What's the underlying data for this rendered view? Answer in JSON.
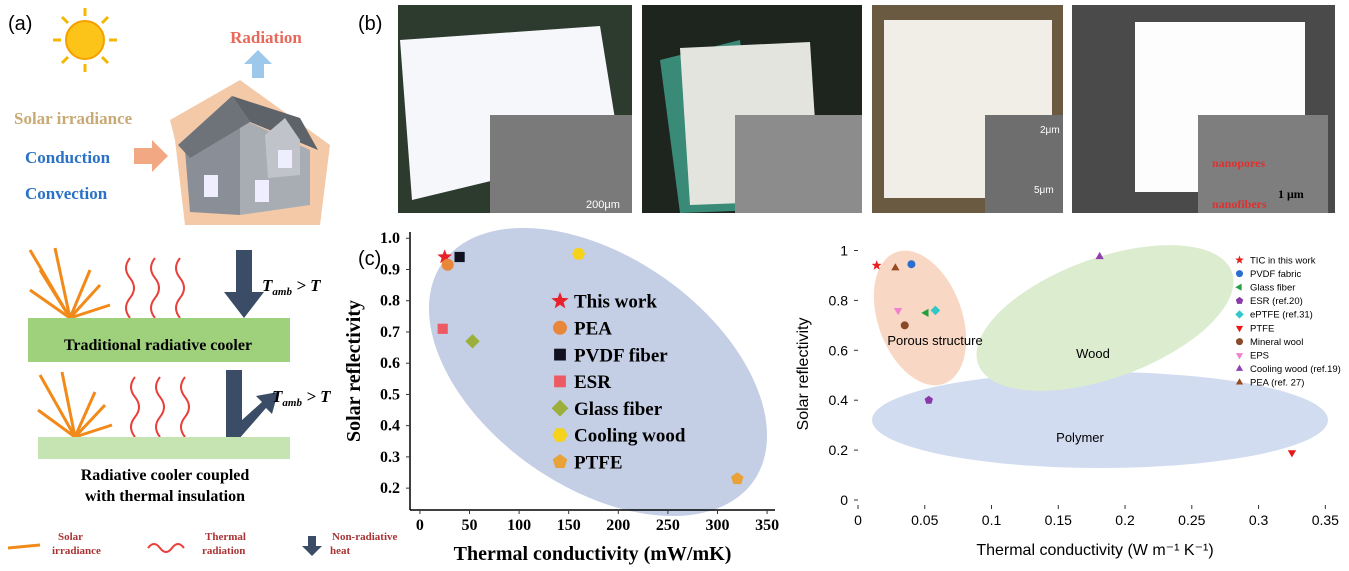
{
  "panel_a": {
    "label": "(a)",
    "radiation": "Radiation",
    "solar_irradiance": "Solar irradiance",
    "conduction": "Conduction",
    "convection": "Convection",
    "condition": [
      "T",
      "amb",
      " > T"
    ],
    "traditional": "Traditional radiative cooler",
    "coupled": [
      "Radiative cooler coupled",
      "with thermal insulation"
    ],
    "legend": [
      [
        "Solar",
        "irradiance"
      ],
      [
        "Thermal",
        "radiation"
      ],
      [
        "Non-radiative",
        "heat"
      ]
    ]
  },
  "panel_b": {
    "label": "(b)",
    "scale_1": "200μm",
    "scale_3a": "2μm",
    "scale_3b": "5μm",
    "pores": "nanopores",
    "fibers": "nanofibers",
    "scale_4": "1 μm"
  },
  "panel_c": {
    "label": "(c)"
  },
  "chart_data": [
    {
      "type": "scatter",
      "xlabel": "Thermal conductivity (mW/mK)",
      "ylabel": "Solar reflectivity",
      "xlim": [
        -10,
        358
      ],
      "ylim": [
        0.13,
        1.02
      ],
      "xticks": [
        0,
        50,
        100,
        150,
        200,
        250,
        300,
        350
      ],
      "yticks": [
        0.2,
        0.3,
        0.4,
        0.5,
        0.6,
        0.7,
        0.8,
        0.9,
        {
          "value": 1,
          "label": "1.0"
        }
      ],
      "series": [
        {
          "name": "This work",
          "color": "#e8202a",
          "marker": "star",
          "x": [
            25
          ],
          "values": [
            0.94
          ]
        },
        {
          "name": "PEA",
          "color": "#e8863a",
          "marker": "circle",
          "x": [
            28
          ],
          "values": [
            0.915
          ]
        },
        {
          "name": "PVDF fiber",
          "color": "#111122",
          "marker": "square",
          "x": [
            40
          ],
          "values": [
            0.94
          ]
        },
        {
          "name": "ESR",
          "color": "#ee5a64",
          "marker": "square",
          "x": [
            23
          ],
          "values": [
            0.71
          ]
        },
        {
          "name": "Glass fiber",
          "color": "#9ab03a",
          "marker": "diamond",
          "x": [
            53
          ],
          "values": [
            0.67
          ]
        },
        {
          "name": "Cooling wood",
          "color": "#f6d21a",
          "marker": "hexagon",
          "x": [
            160
          ],
          "values": [
            0.95
          ]
        },
        {
          "name": "PTFE",
          "color": "#e8a238",
          "marker": "pentagon",
          "x": [
            320
          ],
          "values": [
            0.23
          ]
        }
      ]
    },
    {
      "type": "scatter",
      "xlabel": "Thermal conductivity (W m⁻¹ K⁻¹)",
      "ylabel": "Solar reflectivity",
      "xlim": [
        0,
        0.355
      ],
      "ylim": [
        -0.02,
        1.03
      ],
      "xticks": [
        0,
        0.05,
        0.1,
        0.15,
        0.2,
        0.25,
        0.3,
        0.35
      ],
      "yticks": [
        0,
        0.2,
        0.4,
        0.6,
        0.8,
        1
      ],
      "annotations": [
        "Porous structure",
        "Wood",
        "Polymer"
      ],
      "series": [
        {
          "name": "TIC in this work",
          "color": "#e82020",
          "marker": "star",
          "x": [
            0.014
          ],
          "values": [
            0.94
          ]
        },
        {
          "name": "PVDF fabric",
          "color": "#2a6fd0",
          "marker": "circle",
          "x": [
            0.04
          ],
          "values": [
            0.945
          ]
        },
        {
          "name": "Glass fiber",
          "color": "#22a040",
          "marker": "triangle-left",
          "x": [
            0.051
          ],
          "values": [
            0.75
          ]
        },
        {
          "name": "ESR (ref.20)",
          "color": "#8a3aa8",
          "marker": "pentagon",
          "x": [
            0.053
          ],
          "values": [
            0.4
          ]
        },
        {
          "name": "ePTFE (ref.31)",
          "color": "#30c8c8",
          "marker": "diamond",
          "x": [
            0.058
          ],
          "values": [
            0.76
          ]
        },
        {
          "name": "PTFE",
          "color": "#e81818",
          "marker": "triangle-down",
          "x": [
            0.325
          ],
          "values": [
            0.19
          ]
        },
        {
          "name": "Mineral wool",
          "color": "#8a4a2a",
          "marker": "circle",
          "x": [
            0.035
          ],
          "values": [
            0.7
          ]
        },
        {
          "name": "EPS",
          "color": "#f080d0",
          "marker": "triangle-down",
          "x": [
            0.03
          ],
          "values": [
            0.76
          ]
        },
        {
          "name": "Cooling wood (ref.19)",
          "color": "#9040b0",
          "marker": "triangle-up",
          "x": [
            0.181
          ],
          "values": [
            0.975
          ]
        },
        {
          "name": "PEA (ref. 27)",
          "color": "#9a4a20",
          "marker": "triangle-up",
          "x": [
            0.028
          ],
          "values": [
            0.93
          ]
        }
      ]
    }
  ]
}
